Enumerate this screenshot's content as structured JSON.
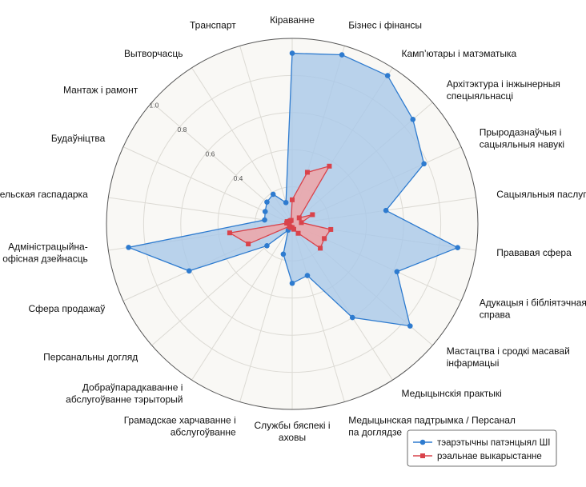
{
  "chart_data": {
    "type": "radar",
    "categories": [
      [
        "Кіраванне"
      ],
      [
        "Бізнес і фінансы"
      ],
      [
        "Камп’ютары і матэматыка"
      ],
      [
        "Архітэктура і інжынерныя",
        "спецыяльнасці"
      ],
      [
        "Прыродазнаўчыя і",
        "сацыяльныя навукі"
      ],
      [
        "Сацыяльныя паслугі"
      ],
      [
        "Прававая сфера"
      ],
      [
        "Адукацыя і бібліятэчная",
        "справа"
      ],
      [
        "Мастацтва і сродкі масавай",
        "інфармацыі"
      ],
      [
        "Медыцынскія практыкі"
      ],
      [
        "Медыцынская падтрымка / Персанал",
        "па доглядзе"
      ],
      [
        "Службы бяспекі і",
        "аховы"
      ],
      [
        "Грамадскае харчаванне і",
        "абслугоўванне"
      ],
      [
        "Добраўпарадкаванне і",
        "абслугоўванне тэрыторый"
      ],
      [
        "Персанальны догляд"
      ],
      [
        "Сфера продажаў"
      ],
      [
        "Адміністрацыйна-",
        "офісная дзейнасць"
      ],
      [
        "Сельская гаспадарка"
      ],
      [
        "Будаўніцтва"
      ],
      [
        "Мантаж і рамонт"
      ],
      [
        "Вытворчасць"
      ],
      [
        "Транспарт"
      ]
    ],
    "series": [
      {
        "name": "тэарэтычны патэнцыял ШІ",
        "color": "#2e7bcf",
        "fill": "#a9c8e8",
        "marker": "circle",
        "values": [
          0.92,
          0.95,
          0.95,
          0.86,
          0.78,
          0.51,
          0.9,
          0.62,
          0.84,
          0.6,
          0.29,
          0.32,
          0.17,
          0.04,
          0.18,
          0.61,
          0.89,
          0.15,
          0.16,
          0.18,
          0.19,
          0.12
        ]
      },
      {
        "name": "рэальнае выкарыстанне",
        "color": "#d9434b",
        "fill": "#f2a3a4",
        "marker": "square",
        "values": [
          0.13,
          0.29,
          0.37,
          0.05,
          0.12,
          0.05,
          0.21,
          0.19,
          0.2,
          0.06,
          0.03,
          0.02,
          0.02,
          0.02,
          0.02,
          0.26,
          0.34,
          0.03,
          0.03,
          0.02,
          0.02,
          0.02
        ]
      }
    ],
    "rticks": [
      "0.4",
      "0.6",
      "0.8",
      "1.0"
    ],
    "rlim": [
      0,
      1.0
    ],
    "grid": true,
    "legend_position": "bottom-right"
  }
}
